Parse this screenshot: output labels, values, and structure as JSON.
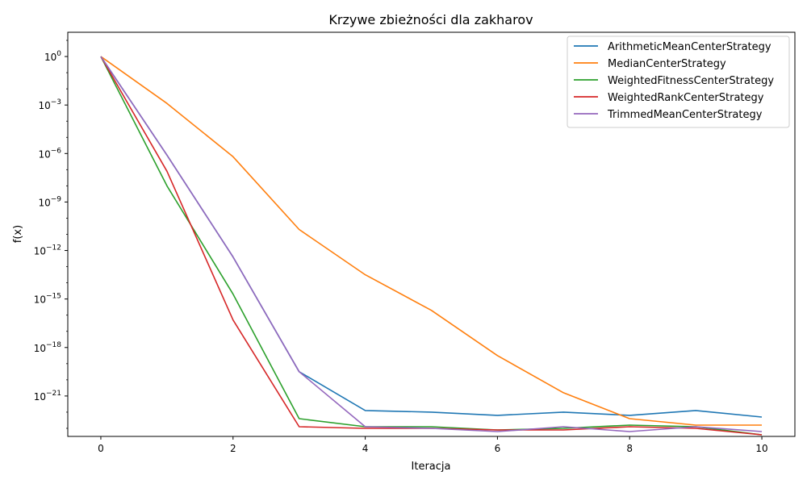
{
  "chart_data": {
    "type": "line",
    "title": "Krzywe zbieżności dla zakharov",
    "xlabel": "Iteracja",
    "ylabel": "f(x)",
    "yscale": "log",
    "xlim": [
      -0.5,
      10.5
    ],
    "ylim_log10": [
      -23.5,
      1.5
    ],
    "x_ticks": [
      0,
      2,
      4,
      6,
      8,
      10
    ],
    "y_ticks": [
      {
        "exp": 0,
        "base": "10",
        "sup": "0"
      },
      {
        "exp": -3,
        "base": "10",
        "sup": "−3"
      },
      {
        "exp": -6,
        "base": "10",
        "sup": "−6"
      },
      {
        "exp": -9,
        "base": "10",
        "sup": "−9"
      },
      {
        "exp": -12,
        "base": "10",
        "sup": "−12"
      },
      {
        "exp": -15,
        "base": "10",
        "sup": "−15"
      },
      {
        "exp": -18,
        "base": "10",
        "sup": "−18"
      },
      {
        "exp": -21,
        "base": "10",
        "sup": "−21"
      }
    ],
    "legend_position": "top-right",
    "grid": false,
    "x": [
      0,
      1,
      2,
      3,
      4,
      5,
      6,
      7,
      8,
      9,
      10
    ],
    "series": [
      {
        "name": "ArithmeticMeanCenterStrategy",
        "color": "#1f77b4",
        "log10_values": [
          0,
          -6.1,
          -12.4,
          -19.5,
          -21.9,
          -22.0,
          -22.2,
          -22.0,
          -22.2,
          -21.9,
          -22.3
        ]
      },
      {
        "name": "MedianCenterStrategy",
        "color": "#ff7f0e",
        "log10_values": [
          0,
          -2.9,
          -6.2,
          -10.7,
          -13.5,
          -15.7,
          -18.5,
          -20.8,
          -22.4,
          -22.8,
          -22.8
        ]
      },
      {
        "name": "WeightedFitnessCenterStrategy",
        "color": "#2ca02c",
        "log10_values": [
          0,
          -8.0,
          -14.7,
          -22.4,
          -22.9,
          -22.9,
          -23.1,
          -23.0,
          -22.8,
          -22.9,
          -23.4
        ]
      },
      {
        "name": "WeightedRankCenterStrategy",
        "color": "#d62728",
        "log10_values": [
          0,
          -7.1,
          -16.3,
          -22.9,
          -23.0,
          -23.0,
          -23.1,
          -23.1,
          -22.9,
          -23.0,
          -23.4
        ]
      },
      {
        "name": "TrimmedMeanCenterStrategy",
        "color": "#9467bd",
        "log10_values": [
          0,
          -6.1,
          -12.4,
          -19.5,
          -22.9,
          -23.0,
          -23.2,
          -22.9,
          -23.2,
          -22.9,
          -23.2
        ]
      }
    ]
  }
}
